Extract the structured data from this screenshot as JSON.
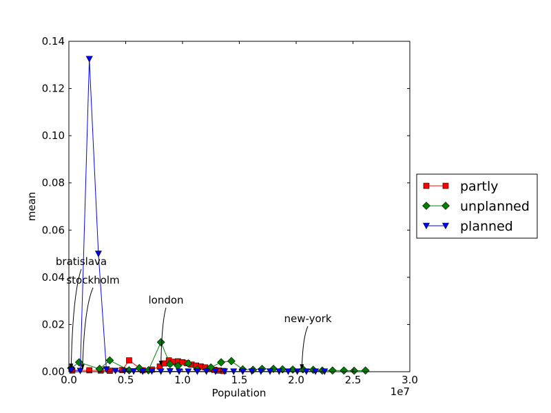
{
  "chart_data": {
    "type": "line",
    "title": "",
    "xlabel": "Population",
    "ylabel": "mean",
    "x_offset_label": "1e7",
    "xlim": [
      0,
      30000000
    ],
    "ylim": [
      0,
      0.14
    ],
    "xticks": [
      0,
      5000000,
      10000000,
      15000000,
      20000000,
      25000000,
      30000000
    ],
    "xtick_labels": [
      "0.0",
      "0.5",
      "1.0",
      "1.5",
      "2.0",
      "2.5",
      "3.0"
    ],
    "yticks": [
      0,
      0.02,
      0.04,
      0.06,
      0.08,
      0.1,
      0.12,
      0.14
    ],
    "ytick_labels": [
      "0.00",
      "0.02",
      "0.04",
      "0.06",
      "0.08",
      "0.10",
      "0.12",
      "0.14"
    ],
    "grid": false,
    "legend_position": "right, outside",
    "series": [
      {
        "name": "partly",
        "color": "#ff0000",
        "marker": "square",
        "x": [
          300000,
          1800000,
          2800000,
          3600000,
          4700000,
          5300000,
          6500000,
          7300000,
          8000000,
          8400000,
          8800000,
          9200000,
          9600000,
          10000000,
          10400000,
          10800000,
          11200000,
          11600000,
          12000000,
          12400000,
          12800000,
          13200000,
          13600000
        ],
        "y": [
          0.0005,
          0.0006,
          0.0005,
          0.0004,
          0.0007,
          0.0048,
          0.0006,
          0.0009,
          0.0022,
          0.0035,
          0.0048,
          0.0042,
          0.0044,
          0.004,
          0.0036,
          0.003,
          0.0026,
          0.0022,
          0.0018,
          0.0012,
          0.0008,
          0.0005,
          0.0003
        ]
      },
      {
        "name": "unplanned",
        "color": "#008000",
        "marker": "diamond",
        "x": [
          200000,
          900000,
          2700000,
          3600000,
          5300000,
          6200000,
          7000000,
          8100000,
          8900000,
          9600000,
          10500000,
          11300000,
          12500000,
          13400000,
          14300000,
          15300000,
          16200000,
          17000000,
          18000000,
          18800000,
          19700000,
          20600000,
          21500000,
          22300000,
          23200000,
          24200000,
          25100000,
          26100000
        ],
        "y": [
          0.0015,
          0.004,
          0.0012,
          0.0048,
          0.0006,
          0.0015,
          0.0006,
          0.0125,
          0.0032,
          0.0025,
          0.0035,
          0.001,
          0.0018,
          0.004,
          0.0045,
          0.001,
          0.0008,
          0.0012,
          0.0012,
          0.001,
          0.0009,
          0.001,
          0.0008,
          0.0005,
          0.0005,
          0.0005,
          0.0004,
          0.0005
        ]
      },
      {
        "name": "planned",
        "color": "#0000ff",
        "marker": "triangle-down",
        "x": [
          200000,
          1000000,
          1800000,
          2600000,
          3300000,
          4100000,
          4900000,
          5700000,
          6500000,
          7300000,
          8100000,
          8900000,
          9700000,
          10500000,
          11300000,
          12100000,
          12900000,
          13700000,
          14500000,
          15300000,
          16100000,
          16900000,
          17700000,
          18500000,
          19300000,
          20100000,
          20900000,
          21700000,
          22500000
        ],
        "y": [
          0.0008,
          0.0004,
          0.1325,
          0.05,
          0.001,
          0.0004,
          0.0003,
          0.0002,
          0.0001,
          0.0002,
          0.0001,
          0.0002,
          0.0001,
          0.0001,
          0.0001,
          0.0001,
          0.0001,
          0.0001,
          0.0001,
          0.0001,
          0.0001,
          0.0001,
          0.0001,
          0.0001,
          0.0001,
          0.0001,
          0.0001,
          0.0001,
          0.0001
        ]
      }
    ],
    "annotations": [
      {
        "text": "bratislava",
        "x": 200000,
        "y": 0.0008
      },
      {
        "text": "stockholm",
        "x": 1200000,
        "y": 0.0005
      },
      {
        "text": "london",
        "x": 8100000,
        "y": 0.002
      },
      {
        "text": "new-york",
        "x": 20500000,
        "y": 0.0005
      }
    ]
  }
}
